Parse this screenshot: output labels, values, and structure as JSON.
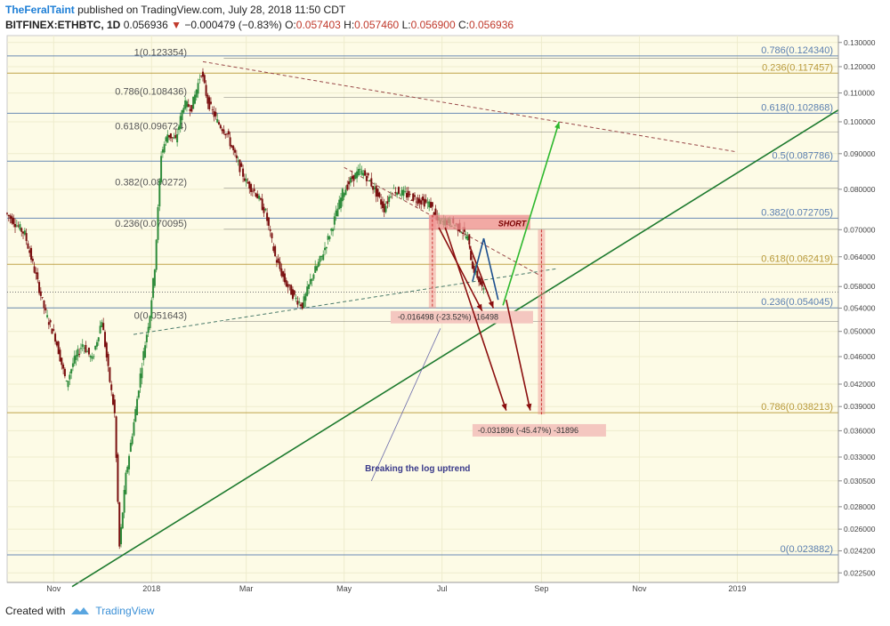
{
  "header": {
    "author": "TheFeralTaint",
    "published": " published on TradingView.com, July 28, 2018 11:50 CDT",
    "symbol": "BITFINEX:ETHBTC, 1D",
    "last": "0.056936",
    "change_arrow": "▼",
    "change": "−0.000479 (−0.83%)",
    "ohlc": {
      "O": "0.057403",
      "H": "0.057460",
      "L": "0.056900",
      "C": "0.056936"
    }
  },
  "footer": {
    "created_with": "Created with",
    "brand": "TradingView",
    "logo_icon": "tradingview-logo-icon"
  },
  "colors": {
    "bg_plot": "#fdfbe6",
    "up": "#2e8b3a",
    "down": "#7a1010",
    "fib_blue": "#5b7fb0",
    "fib_gold": "#b99a3a",
    "trend_green": "#1d7a2e",
    "arrow_red": "#8b0f0f",
    "arrow_green": "#2db82d",
    "arrow_blue": "#1c4f8e",
    "short_box": "#ee8e8e",
    "measure_box": "#f4c7c0"
  },
  "chart_data": {
    "type": "candlestick",
    "title": "",
    "ylabel": "",
    "y_scale": "log",
    "ylim": [
      0.0218,
      0.133
    ],
    "xlim": [
      "2017-10-03",
      "2019-03-05"
    ],
    "x_ticks": [
      {
        "date": "2017-11-01",
        "label": "Nov"
      },
      {
        "date": "2018-01-01",
        "label": "2018"
      },
      {
        "date": "2018-03-01",
        "label": "Mar"
      },
      {
        "date": "2018-05-01",
        "label": "May"
      },
      {
        "date": "2018-07-01",
        "label": "Jul"
      },
      {
        "date": "2018-09-01",
        "label": "Sep"
      },
      {
        "date": "2018-11-01",
        "label": "Nov"
      },
      {
        "date": "2019-01-01",
        "label": "2019"
      }
    ],
    "y_ticks": [
      "0.130000",
      "0.120000",
      "0.110000",
      "0.100000",
      "0.090000",
      "0.080000",
      "0.070000",
      "0.064000",
      "0.058000",
      "0.054000",
      "0.050000",
      "0.046000",
      "0.042000",
      "0.039000",
      "0.036000",
      "0.033000",
      "0.030500",
      "0.028000",
      "0.026000",
      "0.024200",
      "0.022500"
    ],
    "last_price": "0.056936",
    "price_path": [
      [
        "2017-10-03",
        0.074
      ],
      [
        "2017-10-08",
        0.072
      ],
      [
        "2017-10-15",
        0.069
      ],
      [
        "2017-10-22",
        0.06
      ],
      [
        "2017-10-28",
        0.053
      ],
      [
        "2017-11-03",
        0.049
      ],
      [
        "2017-11-10",
        0.042
      ],
      [
        "2017-11-14",
        0.045
      ],
      [
        "2017-11-20",
        0.048
      ],
      [
        "2017-11-26",
        0.0455
      ],
      [
        "2017-12-02",
        0.052
      ],
      [
        "2017-12-06",
        0.044
      ],
      [
        "2017-12-10",
        0.038
      ],
      [
        "2017-12-13",
        0.0245
      ],
      [
        "2017-12-17",
        0.031
      ],
      [
        "2017-12-22",
        0.037
      ],
      [
        "2017-12-27",
        0.045
      ],
      [
        "2018-01-01",
        0.053
      ],
      [
        "2018-01-04",
        0.062
      ],
      [
        "2018-01-08",
        0.09
      ],
      [
        "2018-01-12",
        0.096
      ],
      [
        "2018-01-17",
        0.094
      ],
      [
        "2018-01-22",
        0.106
      ],
      [
        "2018-01-27",
        0.105
      ],
      [
        "2018-02-02",
        0.118
      ],
      [
        "2018-02-06",
        0.107
      ],
      [
        "2018-02-12",
        0.1
      ],
      [
        "2018-02-18",
        0.096
      ],
      [
        "2018-02-24",
        0.088
      ],
      [
        "2018-03-02",
        0.082
      ],
      [
        "2018-03-08",
        0.079
      ],
      [
        "2018-03-14",
        0.074
      ],
      [
        "2018-03-20",
        0.064
      ],
      [
        "2018-03-26",
        0.059
      ],
      [
        "2018-04-01",
        0.056
      ],
      [
        "2018-04-06",
        0.0545
      ],
      [
        "2018-04-12",
        0.06
      ],
      [
        "2018-04-18",
        0.064
      ],
      [
        "2018-04-24",
        0.07
      ],
      [
        "2018-05-01",
        0.079
      ],
      [
        "2018-05-07",
        0.083
      ],
      [
        "2018-05-12",
        0.085
      ],
      [
        "2018-05-17",
        0.083
      ],
      [
        "2018-05-22",
        0.079
      ],
      [
        "2018-05-27",
        0.075
      ],
      [
        "2018-06-01",
        0.08
      ],
      [
        "2018-06-07",
        0.079
      ],
      [
        "2018-06-13",
        0.078
      ],
      [
        "2018-06-19",
        0.077
      ],
      [
        "2018-06-25",
        0.076
      ],
      [
        "2018-06-29",
        0.072
      ],
      [
        "2018-07-04",
        0.072
      ],
      [
        "2018-07-09",
        0.0715
      ],
      [
        "2018-07-14",
        0.07
      ],
      [
        "2018-07-18",
        0.068
      ],
      [
        "2018-07-21",
        0.062
      ],
      [
        "2018-07-24",
        0.06
      ],
      [
        "2018-07-28",
        0.0569
      ]
    ],
    "fib_levels": [
      {
        "label": "1(0.123354)",
        "value": 0.123354,
        "color": "blue"
      },
      {
        "label": "0.786(0.108436)",
        "value": 0.108436,
        "color": "blue"
      },
      {
        "label": "0.618(0.096724)",
        "value": 0.096724,
        "color": "blue"
      },
      {
        "label": "0.382(0.080272)",
        "value": 0.080272,
        "color": "blue"
      },
      {
        "label": "0.236(0.070095)",
        "value": 0.070095,
        "color": "blue"
      },
      {
        "label": "0(0.051643)",
        "value": 0.051643,
        "color": "blue"
      },
      {
        "label": "0.786(0.124340)",
        "value": 0.12434,
        "color": "blue"
      },
      {
        "label": "0.236(0.117457)",
        "value": 0.117457,
        "color": "gold"
      },
      {
        "label": "0.618(0.102868)",
        "value": 0.102868,
        "color": "blue"
      },
      {
        "label": "0.5(0.087786)",
        "value": 0.087786,
        "color": "blue"
      },
      {
        "label": "0.382(0.072705)",
        "value": 0.072705,
        "color": "blue"
      },
      {
        "label": "0.618(0.062419)",
        "value": 0.062419,
        "color": "gold"
      },
      {
        "label": "0.236(0.054045)",
        "value": 0.054045,
        "color": "blue"
      },
      {
        "label": "0.786(0.038213)",
        "value": 0.038213,
        "color": "gold"
      },
      {
        "label": "0(0.023882)",
        "value": 0.023882,
        "color": "blue"
      }
    ],
    "annotations": {
      "short": "SHORT",
      "measure1": "-0.016498 (-23.52%) -16498",
      "measure2": "-0.031896 (-45.47%) -31896",
      "note": "Breaking the log uptrend"
    }
  }
}
